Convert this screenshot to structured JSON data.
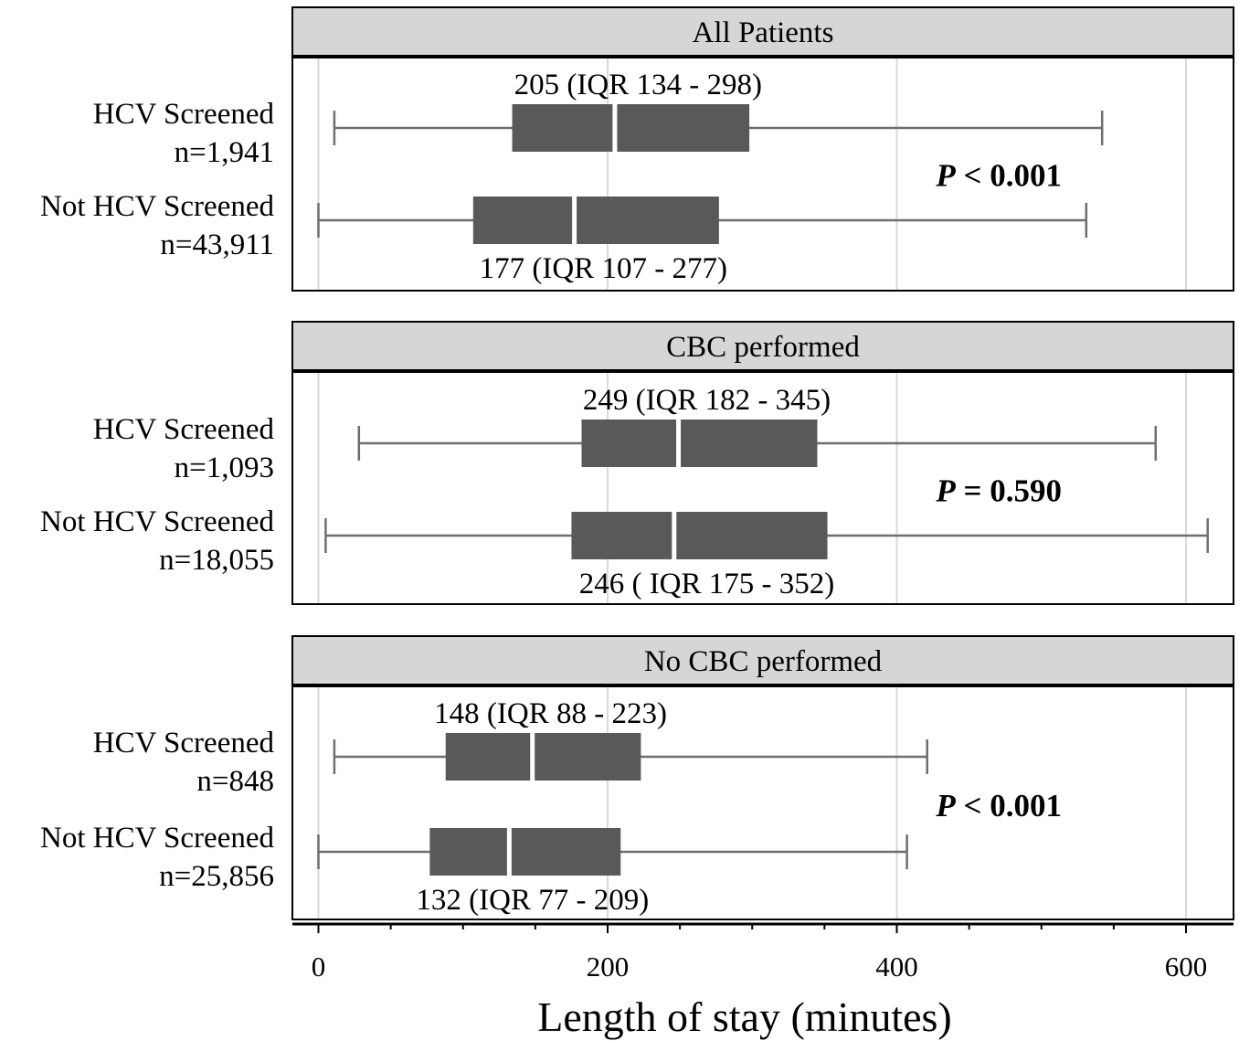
{
  "chart_data": {
    "type": "boxplot",
    "xlabel": "Length of stay (minutes)",
    "xlim": [
      -9,
      630
    ],
    "x_ticks": [
      0,
      200,
      400,
      600
    ],
    "x_tick_labels": [
      "0",
      "200",
      "400",
      "600"
    ],
    "minor_tick_step": 50,
    "grid": true,
    "colors": {
      "box_fill": "#595959",
      "whisker": "#6e6e6e",
      "strip_fill": "#d6d6d6",
      "grid": "#d9d9d9",
      "panel_border": "#000000"
    },
    "panels": [
      {
        "title": "All Patients",
        "p_value_label": "< 0.001",
        "groups": [
          {
            "label": "HCV Screened",
            "n_label": "n=1,941",
            "min": 11,
            "q1": 134,
            "median": 205,
            "q3": 298,
            "max": 542,
            "summary": "205 (IQR 134 - 298)",
            "summary_position": "above"
          },
          {
            "label": "Not HCV Screened",
            "n_label": "n=43,911",
            "min": 0,
            "q1": 107,
            "median": 177,
            "q3": 277,
            "max": 531,
            "summary": "177 (IQR 107 - 277)",
            "summary_position": "below"
          }
        ]
      },
      {
        "title": "CBC performed",
        "p_value_label": "= 0.590",
        "groups": [
          {
            "label": "HCV Screened",
            "n_label": "n=1,093",
            "min": 28,
            "q1": 182,
            "median": 249,
            "q3": 345,
            "max": 579,
            "summary": "249 (IQR 182 - 345)",
            "summary_position": "above"
          },
          {
            "label": "Not HCV Screened",
            "n_label": "n=18,055",
            "min": 5,
            "q1": 175,
            "median": 246,
            "q3": 352,
            "max": 615,
            "summary": "246 ( IQR 175 - 352)",
            "summary_position": "below"
          }
        ]
      },
      {
        "title": "No CBC performed",
        "p_value_label": "< 0.001",
        "groups": [
          {
            "label": "HCV Screened",
            "n_label": "n=848",
            "min": 11,
            "q1": 88,
            "median": 148,
            "q3": 223,
            "max": 421,
            "summary": "148 (IQR 88 - 223)",
            "summary_position": "above"
          },
          {
            "label": "Not HCV Screened",
            "n_label": "n=25,856",
            "min": 0,
            "q1": 77,
            "median": 132,
            "q3": 209,
            "max": 407,
            "summary": "132 (IQR 77 - 209)",
            "summary_position": "below"
          }
        ]
      }
    ]
  }
}
